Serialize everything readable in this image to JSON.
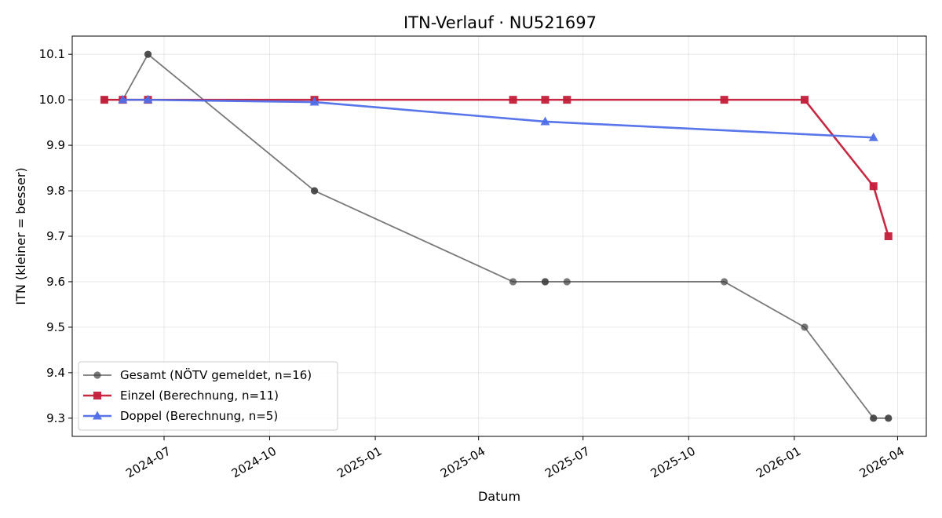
{
  "chart_data": {
    "type": "line",
    "title": "ITN-Verlauf · NU521697",
    "xlabel": "Datum",
    "ylabel": "ITN  (kleiner = besser)",
    "x_axis": "date",
    "xlim": [
      "2024-04-12",
      "2026-04-26"
    ],
    "ylim": [
      9.26,
      10.14
    ],
    "x_ticks": [
      "2024-07-01",
      "2024-10-01",
      "2025-01-01",
      "2025-04-01",
      "2025-07-01",
      "2025-10-01",
      "2026-01-01",
      "2026-04-01"
    ],
    "x_tick_labels": [
      "2024-07",
      "2024-10",
      "2025-01",
      "2025-04",
      "2025-07",
      "2025-10",
      "2026-01",
      "2026-04"
    ],
    "y_ticks": [
      9.3,
      9.4,
      9.5,
      9.6,
      9.7,
      9.8,
      9.9,
      10.0,
      10.1
    ],
    "y_tick_labels": [
      "9.3",
      "9.4",
      "9.5",
      "9.6",
      "9.7",
      "9.8",
      "9.9",
      "10.0",
      "10.1"
    ],
    "grid": true,
    "legend_position": "bottom-left",
    "series": [
      {
        "name": "Gesamt (NÖTV gemeldet, n=16)",
        "color": "#404040",
        "marker": "circle",
        "points": [
          {
            "x": "2024-05-10",
            "y": 10.0
          },
          {
            "x": "2024-05-26",
            "y": 10.0
          },
          {
            "x": "2024-06-17",
            "y": 10.1
          },
          {
            "x": "2024-06-17",
            "y": 10.1
          },
          {
            "x": "2024-11-09",
            "y": 9.8
          },
          {
            "x": "2024-11-09",
            "y": 9.8
          },
          {
            "x": "2025-05-01",
            "y": 9.6
          },
          {
            "x": "2025-05-29",
            "y": 9.6
          },
          {
            "x": "2025-05-29",
            "y": 9.6
          },
          {
            "x": "2025-06-17",
            "y": 9.6
          },
          {
            "x": "2025-11-01",
            "y": 9.6
          },
          {
            "x": "2026-01-10",
            "y": 9.5
          },
          {
            "x": "2026-03-11",
            "y": 9.3
          },
          {
            "x": "2026-03-11",
            "y": 9.3
          },
          {
            "x": "2026-03-24",
            "y": 9.3
          },
          {
            "x": "2026-03-24",
            "y": 9.3
          }
        ]
      },
      {
        "name": "Einzel (Berechnung, n=11)",
        "color": "#c41e3a",
        "marker": "square",
        "points": [
          {
            "x": "2024-05-10",
            "y": 10.0
          },
          {
            "x": "2024-05-26",
            "y": 10.0
          },
          {
            "x": "2024-06-17",
            "y": 10.0
          },
          {
            "x": "2024-11-09",
            "y": 10.0
          },
          {
            "x": "2025-05-01",
            "y": 10.0
          },
          {
            "x": "2025-05-29",
            "y": 10.0
          },
          {
            "x": "2025-06-17",
            "y": 10.0
          },
          {
            "x": "2025-11-01",
            "y": 10.0
          },
          {
            "x": "2026-01-10",
            "y": 10.0
          },
          {
            "x": "2026-03-11",
            "y": 9.81
          },
          {
            "x": "2026-03-24",
            "y": 9.7
          }
        ]
      },
      {
        "name": "Doppel (Berechnung, n=5)",
        "color": "#4f6fe8",
        "marker": "triangle",
        "points": [
          {
            "x": "2024-05-26",
            "y": 10.0
          },
          {
            "x": "2024-06-17",
            "y": 10.0
          },
          {
            "x": "2024-11-09",
            "y": 9.995
          },
          {
            "x": "2025-05-29",
            "y": 9.952
          },
          {
            "x": "2026-03-11",
            "y": 9.917
          }
        ]
      }
    ]
  }
}
